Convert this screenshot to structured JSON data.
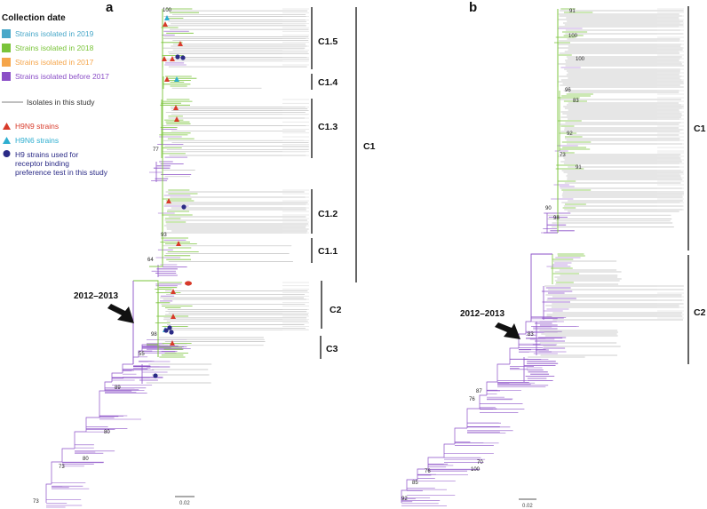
{
  "figure": {
    "panels": [
      {
        "id": "a",
        "label": "a"
      },
      {
        "id": "b",
        "label": "b"
      }
    ],
    "colors": {
      "before2017": "#8b4fc7",
      "y2017": "#f5a54a",
      "y2018": "#7ac43a",
      "y2019": "#49a8c9",
      "this_study": "#bfbfbf",
      "h9n9": "#d83a2a",
      "h9n6": "#2eaed0",
      "receptor": "#2a2a86",
      "black": "#111111"
    }
  },
  "legend": {
    "title": "Collection date",
    "items": [
      {
        "label": "Strains isolated in 2019",
        "color": "#49a8c9"
      },
      {
        "label": "Strains isolated in 2018",
        "color": "#7ac43a"
      },
      {
        "label": "Strains isolated in 2017",
        "color": "#f5a54a"
      },
      {
        "label": "Strains isolated before 2017",
        "color": "#8b4fc7"
      }
    ],
    "study_line": "Isolates in this study",
    "markers": [
      {
        "label": "H9N9 strains",
        "shape": "triangle",
        "color": "#d83a2a"
      },
      {
        "label": "H9N6 strains",
        "shape": "triangle",
        "color": "#2eaed0"
      },
      {
        "label": "H9 strains used for receptor binding preference test in this study",
        "lines": [
          "H9 strains used for",
          "receptor binding",
          "preference test in this study"
        ],
        "shape": "circle",
        "color": "#2a2a86"
      }
    ]
  },
  "panel_a": {
    "subclades": [
      "C1.5",
      "C1.4",
      "C1.3",
      "C1.2",
      "C1.1"
    ],
    "major_clades": [
      "C1",
      "C2",
      "C3"
    ],
    "era_label": "2012–2013",
    "bootstrap": [
      "100",
      "77",
      "93",
      "64",
      "98",
      "55",
      "89",
      "80",
      "80",
      "73",
      "73"
    ],
    "scale": "0.02"
  },
  "panel_b": {
    "major_clades": [
      "C1",
      "C2"
    ],
    "era_label": "2012–2013",
    "bootstrap": [
      "91",
      "100",
      "100",
      "96",
      "83",
      "92",
      "73",
      "91",
      "90",
      "98",
      "83",
      "87",
      "76",
      "100",
      "70",
      "76",
      "85",
      "92"
    ],
    "scale": "0.02"
  }
}
